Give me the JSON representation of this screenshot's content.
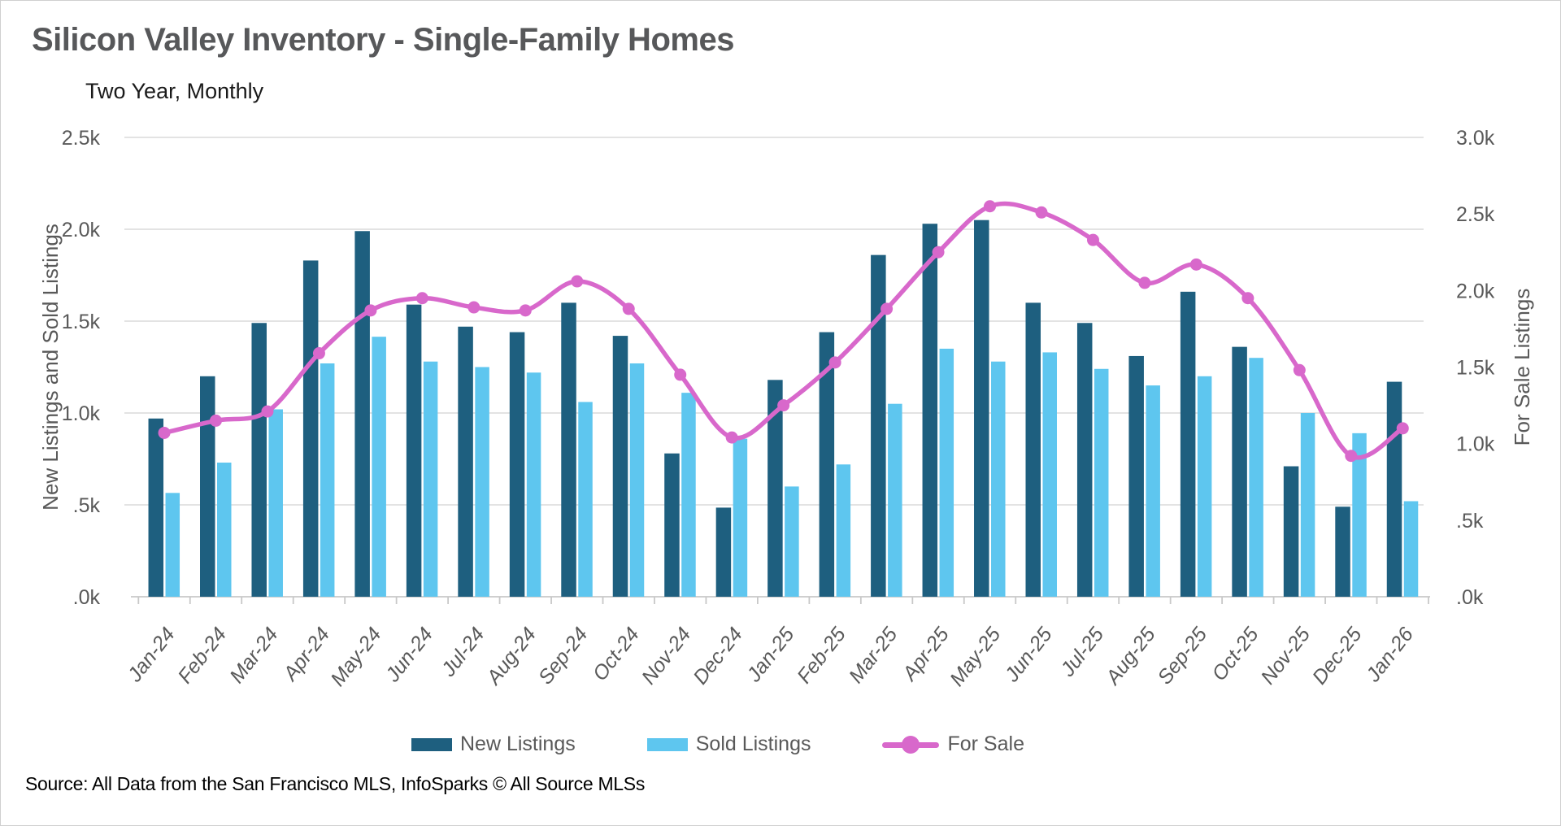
{
  "header": {
    "title": "Silicon Valley Inventory - Single-Family Homes",
    "subtitle": "Two Year, Monthly"
  },
  "source": "Source: All Data from the San Francisco MLS, InfoSparks © All Source MLSs",
  "colors": {
    "new_listings": "#1E5F7F",
    "sold_listings": "#5EC6EF",
    "for_sale": "#D868CB",
    "gridline": "#DADADA",
    "axis_line": "#C8C8C8",
    "axis_text": "#595959",
    "title_text": "#57585A"
  },
  "legend": [
    {
      "label": "New Listings",
      "type": "bar",
      "color": "#1E5F7F"
    },
    {
      "label": "Sold Listings",
      "type": "bar",
      "color": "#5EC6EF"
    },
    {
      "label": "For Sale",
      "type": "line",
      "color": "#D868CB"
    }
  ],
  "chart_data": {
    "type": "bar",
    "subtype": "grouped-bars-with-line",
    "title": "Silicon Valley Inventory - Single-Family Homes",
    "subtitle": "Two Year, Monthly",
    "categories": [
      "Jan-24",
      "Feb-24",
      "Mar-24",
      "Apr-24",
      "May-24",
      "Jun-24",
      "Jul-24",
      "Aug-24",
      "Sep-24",
      "Oct-24",
      "Nov-24",
      "Dec-24",
      "Jan-25",
      "Feb-25",
      "Mar-25",
      "Apr-25",
      "May-25",
      "Jun-25",
      "Jul-25",
      "Aug-25",
      "Sep-25",
      "Oct-25",
      "Nov-25",
      "Dec-25",
      "Jan-26"
    ],
    "series": [
      {
        "name": "New Listings",
        "type": "bar",
        "axis": "left",
        "color": "#1E5F7F",
        "values": [
          970,
          1200,
          1490,
          1830,
          1990,
          1590,
          1470,
          1440,
          1600,
          1420,
          780,
          485,
          1180,
          1440,
          1860,
          2030,
          2050,
          1600,
          1490,
          1310,
          1660,
          1360,
          710,
          490,
          1170
        ]
      },
      {
        "name": "Sold Listings",
        "type": "bar",
        "axis": "left",
        "color": "#5EC6EF",
        "values": [
          565,
          730,
          1020,
          1270,
          1415,
          1280,
          1250,
          1220,
          1060,
          1270,
          1110,
          860,
          600,
          720,
          1050,
          1350,
          1280,
          1330,
          1240,
          1150,
          1200,
          1300,
          1000,
          890,
          520
        ]
      },
      {
        "name": "For Sale",
        "type": "line",
        "axis": "right",
        "color": "#D868CB",
        "values": [
          1070,
          1150,
          1210,
          1590,
          1870,
          1950,
          1890,
          1870,
          2060,
          1880,
          1450,
          1040,
          1250,
          1530,
          1880,
          2250,
          2550,
          2510,
          2330,
          2050,
          2170,
          1950,
          1480,
          920,
          1100
        ]
      }
    ],
    "left_axis": {
      "title": "New Listings and Sold Listings",
      "min": 0,
      "max": 2500,
      "tick_step": 500,
      "tick_labels": [
        ".0k",
        ".5k",
        "1.0k",
        "1.5k",
        "2.0k",
        "2.5k"
      ]
    },
    "right_axis": {
      "title": "For Sale Listings",
      "min": 0,
      "max": 3000,
      "tick_step": 500,
      "tick_labels": [
        ".0k",
        ".5k",
        "1.0k",
        "1.5k",
        "2.0k",
        "2.5k",
        "3.0k"
      ]
    },
    "grid": true,
    "legend_position": "bottom"
  }
}
